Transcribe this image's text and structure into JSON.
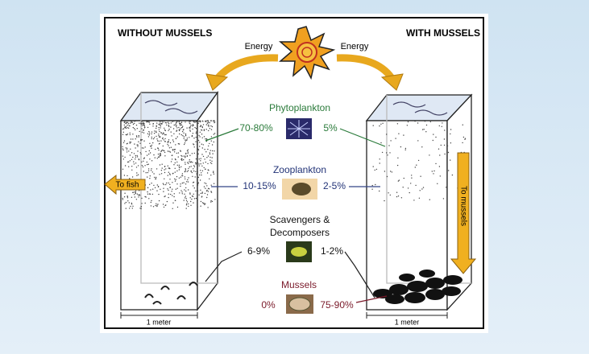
{
  "header": {
    "left_title": "WITHOUT MUSSELS",
    "right_title": "WITH MUSSELS"
  },
  "energy": {
    "left_label": "Energy",
    "right_label": "Energy"
  },
  "levels": [
    {
      "label_lines": [
        "Phytoplankton"
      ],
      "without": "70-80%",
      "with": "5%"
    },
    {
      "label_lines": [
        "Zooplankton"
      ],
      "without": "10-15%",
      "with": "2-5%"
    },
    {
      "label_lines": [
        "Scavengers &",
        "Decomposers"
      ],
      "without": "6-9%",
      "with": "1-2%"
    },
    {
      "label_lines": [
        "Mussels"
      ],
      "without": "0%",
      "with": "75-90%"
    }
  ],
  "arrows": {
    "left": "To fish",
    "right": "To mussels"
  },
  "scale": {
    "left": "1 meter",
    "right": "1 meter"
  }
}
